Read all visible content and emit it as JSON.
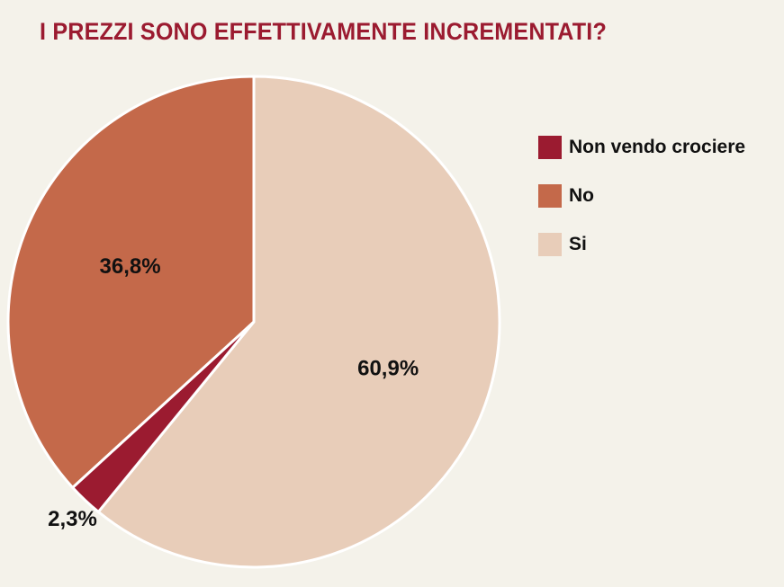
{
  "title": "I PREZZI SONO EFFETTIVAMENTE INCREMENTATI?",
  "chart_data": {
    "type": "pie",
    "title": "I PREZZI SONO EFFETTIVAMENTE INCREMENTATI?",
    "slices": [
      {
        "label": "Si",
        "value": 60.9,
        "display": "60,9%",
        "color": "#e8cdb9"
      },
      {
        "label": "Non vendo crociere",
        "value": 2.3,
        "display": "2,3%",
        "color": "#9b1b30"
      },
      {
        "label": "No",
        "value": 36.8,
        "display": "36,8%",
        "color": "#c4694a"
      }
    ],
    "start": "12 o'clock",
    "direction": "clockwise",
    "legend_position": "right",
    "legend": [
      {
        "label": "Non vendo crociere",
        "color": "#9b1b30"
      },
      {
        "label": "No",
        "color": "#c4694a"
      },
      {
        "label": "Si",
        "color": "#e8cdb9"
      }
    ]
  }
}
